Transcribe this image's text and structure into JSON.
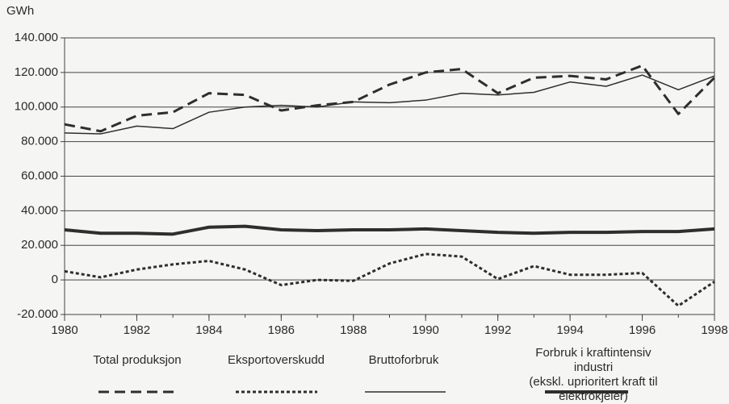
{
  "chart_data": {
    "type": "line",
    "y_label": "GWh",
    "x": [
      1980,
      1981,
      1982,
      1983,
      1984,
      1985,
      1986,
      1987,
      1988,
      1989,
      1990,
      1991,
      1992,
      1993,
      1994,
      1995,
      1996,
      1997,
      1998
    ],
    "series": [
      {
        "name": "Total produksjon",
        "color": "#2e2e2e",
        "style": "dashed",
        "values": [
          90000,
          86000,
          95000,
          97000,
          108000,
          107000,
          98000,
          101000,
          103000,
          113000,
          120000,
          122000,
          108000,
          117000,
          118000,
          116000,
          124000,
          96000,
          117000
        ]
      },
      {
        "name": "Eksportoverskudd",
        "color": "#2e2e2e",
        "style": "dotted",
        "values": [
          5000,
          1500,
          6000,
          9000,
          11000,
          6000,
          -3000,
          0,
          -500,
          9500,
          15000,
          13500,
          500,
          8000,
          3000,
          3000,
          4000,
          -15000,
          -1000
        ]
      },
      {
        "name": "Bruttoforbruk",
        "color": "#2e2e2e",
        "style": "solid",
        "values": [
          85000,
          84500,
          89000,
          87500,
          97000,
          100000,
          101000,
          100000,
          103000,
          102500,
          104000,
          108000,
          107000,
          108500,
          114500,
          112000,
          118500,
          110000,
          118000
        ]
      },
      {
        "name": "Forbruk i kraftintensiv industri\n(ekskl. uprioritert kraft til elektrokjeler)",
        "color": "#2e2e2e",
        "style": "thick",
        "values": [
          29000,
          27000,
          27000,
          26500,
          30500,
          31000,
          29000,
          28500,
          29000,
          29000,
          29500,
          28500,
          27500,
          27000,
          27500,
          27500,
          28000,
          28000,
          29500
        ]
      }
    ],
    "xlim": [
      1980,
      1998
    ],
    "xticks": [
      1980,
      1982,
      1984,
      1986,
      1988,
      1990,
      1992,
      1994,
      1996,
      1998
    ],
    "ylim": [
      -20000,
      140000
    ],
    "yticks": [
      {
        "value": -20000,
        "label": "-20.000"
      },
      0,
      {
        "value": 20000,
        "label": "20.000"
      },
      {
        "value": 40000,
        "label": "40.000"
      },
      {
        "value": 60000,
        "label": "60.000"
      },
      {
        "value": 80000,
        "label": "80.000"
      },
      {
        "value": 100000,
        "label": "100.000"
      },
      {
        "value": 120000,
        "label": "120.000"
      },
      {
        "value": 140000,
        "label": "140.000"
      }
    ],
    "grid": true,
    "legend": "bottom"
  }
}
